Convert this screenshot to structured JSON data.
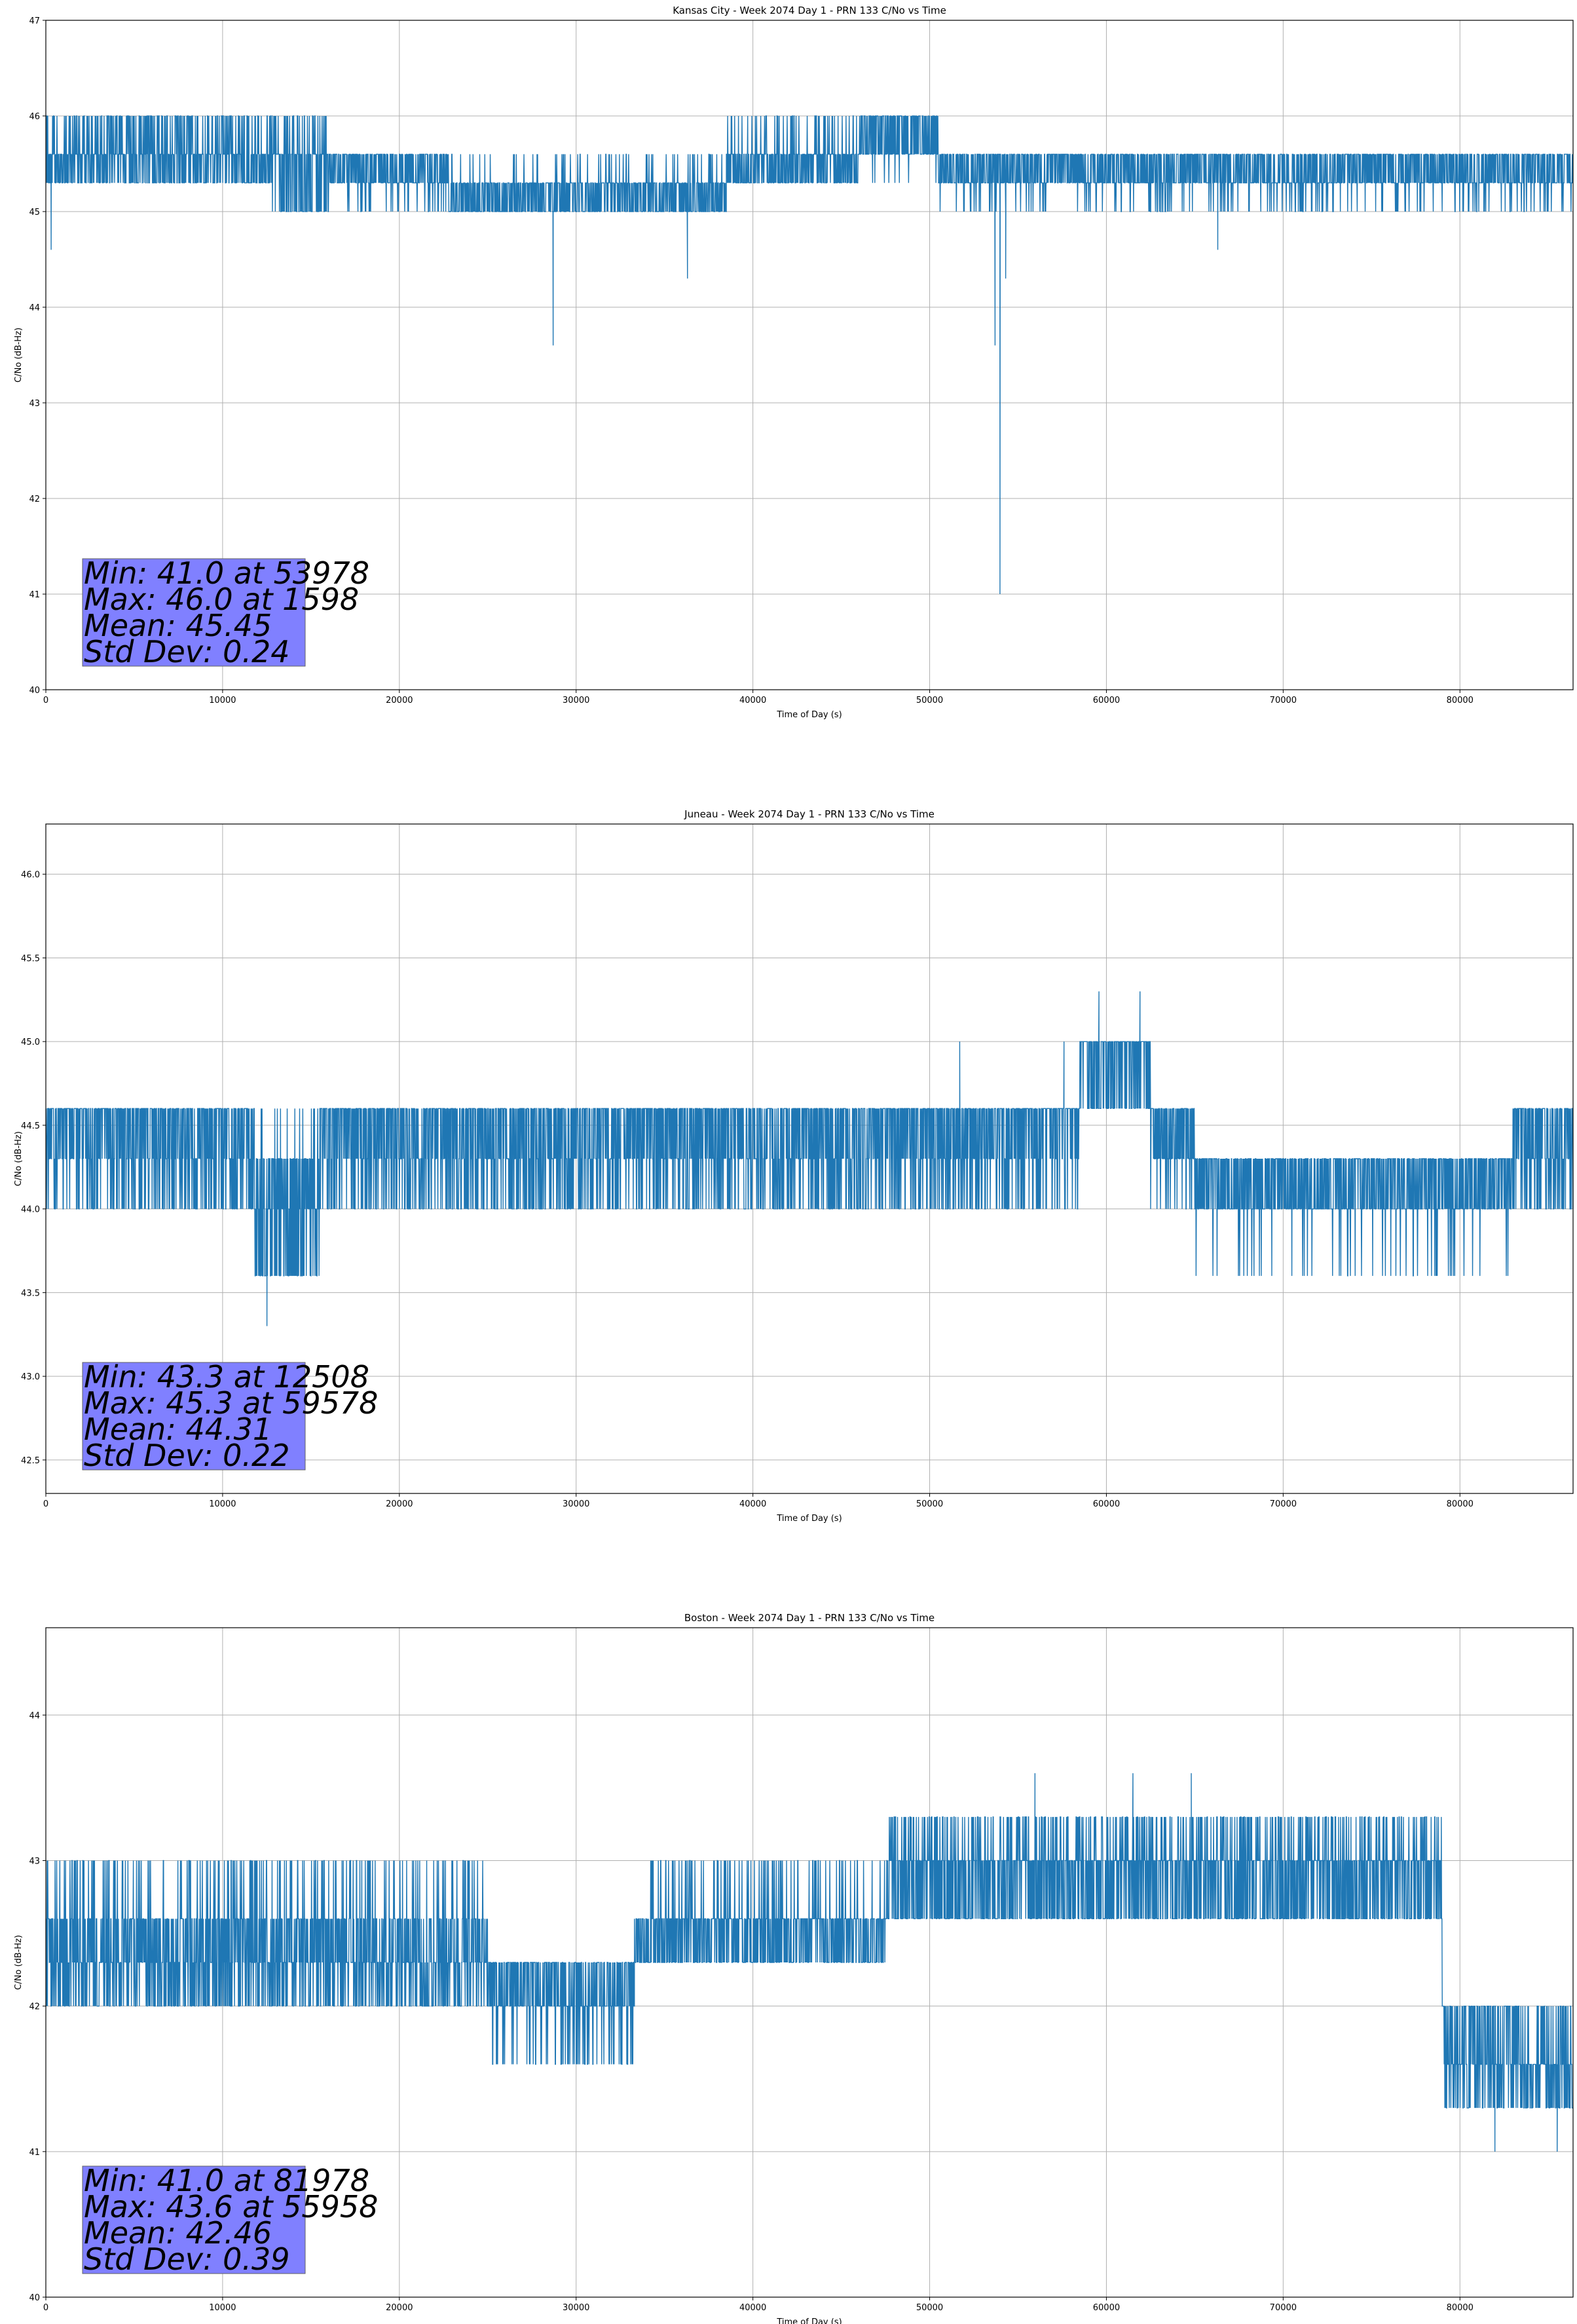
{
  "chart_data": [
    {
      "type": "line",
      "title": "Kansas City - Week 2074 Day 1 - PRN 133 C/No vs Time",
      "xlabel": "Time of Day (s)",
      "ylabel": "C/No (dB-Hz)",
      "xlim": [
        0,
        86400
      ],
      "ylim": [
        40,
        47
      ],
      "xticks": [
        0,
        10000,
        20000,
        30000,
        40000,
        50000,
        60000,
        70000,
        80000
      ],
      "yticks": [
        40,
        41,
        42,
        43,
        44,
        45,
        46,
        47
      ],
      "ytick_labels": [
        "40",
        "41",
        "42",
        "43",
        "44",
        "45",
        "46",
        "47"
      ],
      "grid": true,
      "line_color": "#1f77b4",
      "series": [
        {
          "segments": [
            {
              "x0": 0,
              "x1": 12800,
              "levels": [
                45.3,
                45.6
              ],
              "accent": 46.0,
              "accent_rate": 0.25
            },
            {
              "x0": 12800,
              "x1": 16000,
              "levels": [
                45.0,
                45.6
              ],
              "accent": 46.0,
              "accent_rate": 0.2
            },
            {
              "x0": 16000,
              "x1": 22800,
              "levels": [
                45.3,
                45.6
              ],
              "accent": 45.0,
              "accent_rate": 0.1
            },
            {
              "x0": 22800,
              "x1": 38500,
              "levels": [
                45.0,
                45.3
              ],
              "accent": 45.6,
              "accent_rate": 0.08
            },
            {
              "x0": 38500,
              "x1": 46000,
              "levels": [
                45.3,
                45.6
              ],
              "accent": 46.0,
              "accent_rate": 0.12
            },
            {
              "x0": 46000,
              "x1": 50500,
              "levels": [
                45.6,
                46.0
              ],
              "accent": 45.3,
              "accent_rate": 0.05
            },
            {
              "x0": 50500,
              "x1": 86400,
              "levels": [
                45.3,
                45.6
              ],
              "accent": 45.0,
              "accent_rate": 0.08
            }
          ],
          "spikes": [
            [
              300,
              44.6
            ],
            [
              28700,
              43.6
            ],
            [
              36300,
              44.3
            ],
            [
              53700,
              43.6
            ],
            [
              53978,
              41.0
            ],
            [
              54300,
              44.3
            ],
            [
              66300,
              44.6
            ]
          ]
        }
      ],
      "stats_text": [
        "Min: 41.0 at 53978",
        "Max: 46.0 at 1598",
        "Mean: 45.45",
        "Std Dev: 0.24"
      ],
      "stats_box_color": "#8080ff"
    },
    {
      "type": "line",
      "title": "Juneau - Week 2074 Day 1 - PRN 133 C/No vs Time",
      "xlabel": "Time of Day (s)",
      "ylabel": "C/No (dB-Hz)",
      "xlim": [
        0,
        86400
      ],
      "ylim": [
        42.3,
        46.3
      ],
      "xticks": [
        0,
        10000,
        20000,
        30000,
        40000,
        50000,
        60000,
        70000,
        80000
      ],
      "yticks": [
        42.5,
        43.0,
        43.5,
        44.0,
        44.5,
        45.0,
        45.5,
        46.0
      ],
      "ytick_labels": [
        "42.5",
        "43.0",
        "43.5",
        "44.0",
        "44.5",
        "45.0",
        "45.5",
        "46.0"
      ],
      "grid": true,
      "line_color": "#1f77b4",
      "series": [
        {
          "segments": [
            {
              "x0": 0,
              "x1": 11800,
              "levels": [
                44.0,
                44.3,
                44.6
              ],
              "accent": 44.6,
              "accent_rate": 0.3
            },
            {
              "x0": 11800,
              "x1": 15500,
              "levels": [
                43.6,
                44.0,
                44.3
              ],
              "accent": 44.6,
              "accent_rate": 0.05
            },
            {
              "x0": 15500,
              "x1": 58500,
              "levels": [
                44.0,
                44.3,
                44.6
              ],
              "accent": 44.6,
              "accent_rate": 0.3
            },
            {
              "x0": 58500,
              "x1": 62500,
              "levels": [
                44.6,
                45.0
              ],
              "accent": 45.0,
              "accent_rate": 0.3
            },
            {
              "x0": 62500,
              "x1": 65000,
              "levels": [
                44.3,
                44.6
              ],
              "accent": 44.0,
              "accent_rate": 0.1
            },
            {
              "x0": 65000,
              "x1": 83000,
              "levels": [
                44.0,
                44.3
              ],
              "accent": 43.6,
              "accent_rate": 0.06
            },
            {
              "x0": 83000,
              "x1": 86400,
              "levels": [
                44.0,
                44.3,
                44.6
              ],
              "accent": 44.6,
              "accent_rate": 0.3
            }
          ],
          "spikes": [
            [
              12508,
              43.3
            ],
            [
              59578,
              45.3
            ],
            [
              61900,
              45.3
            ],
            [
              51700,
              45.0
            ],
            [
              57600,
              45.0
            ]
          ]
        }
      ],
      "stats_text": [
        "Min: 43.3 at 12508",
        "Max: 45.3 at 59578",
        "Mean: 44.31",
        "Std Dev: 0.22"
      ],
      "stats_box_color": "#8080ff"
    },
    {
      "type": "line",
      "title": "Boston - Week 2074 Day 1 - PRN 133 C/No vs Time",
      "xlabel": "Time of Day (s)",
      "ylabel": "C/No (dB-Hz)",
      "xlim": [
        0,
        86400
      ],
      "ylim": [
        40,
        44.6
      ],
      "xticks": [
        0,
        10000,
        20000,
        30000,
        40000,
        50000,
        60000,
        70000,
        80000
      ],
      "yticks": [
        40,
        41,
        42,
        43,
        44
      ],
      "ytick_labels": [
        "40",
        "41",
        "42",
        "43",
        "44"
      ],
      "grid": true,
      "line_color": "#1f77b4",
      "series": [
        {
          "segments": [
            {
              "x0": 0,
              "x1": 25000,
              "levels": [
                42.0,
                42.3,
                42.6
              ],
              "accent": 43.0,
              "accent_rate": 0.12
            },
            {
              "x0": 25000,
              "x1": 33300,
              "levels": [
                42.0,
                42.3
              ],
              "accent": 41.6,
              "accent_rate": 0.15
            },
            {
              "x0": 33300,
              "x1": 47500,
              "levels": [
                42.3,
                42.6
              ],
              "accent": 43.0,
              "accent_rate": 0.12
            },
            {
              "x0": 47500,
              "x1": 79000,
              "levels": [
                42.6,
                43.0
              ],
              "accent": 43.3,
              "accent_rate": 0.2
            },
            {
              "x0": 79000,
              "x1": 83500,
              "levels": [
                41.6,
                42.0
              ],
              "accent": 41.3,
              "accent_rate": 0.2
            },
            {
              "x0": 83500,
              "x1": 86400,
              "levels": [
                41.3,
                41.6
              ],
              "accent": 42.0,
              "accent_rate": 0.2
            }
          ],
          "spikes": [
            [
              55958,
              43.6
            ],
            [
              61500,
              43.6
            ],
            [
              64800,
              43.6
            ],
            [
              81978,
              41.0
            ],
            [
              85500,
              41.0
            ]
          ]
        }
      ],
      "stats_text": [
        "Min: 41.0 at 81978",
        "Max: 43.6 at 55958",
        "Mean: 42.46",
        "Std Dev: 0.39"
      ],
      "stats_box_color": "#8080ff"
    }
  ]
}
